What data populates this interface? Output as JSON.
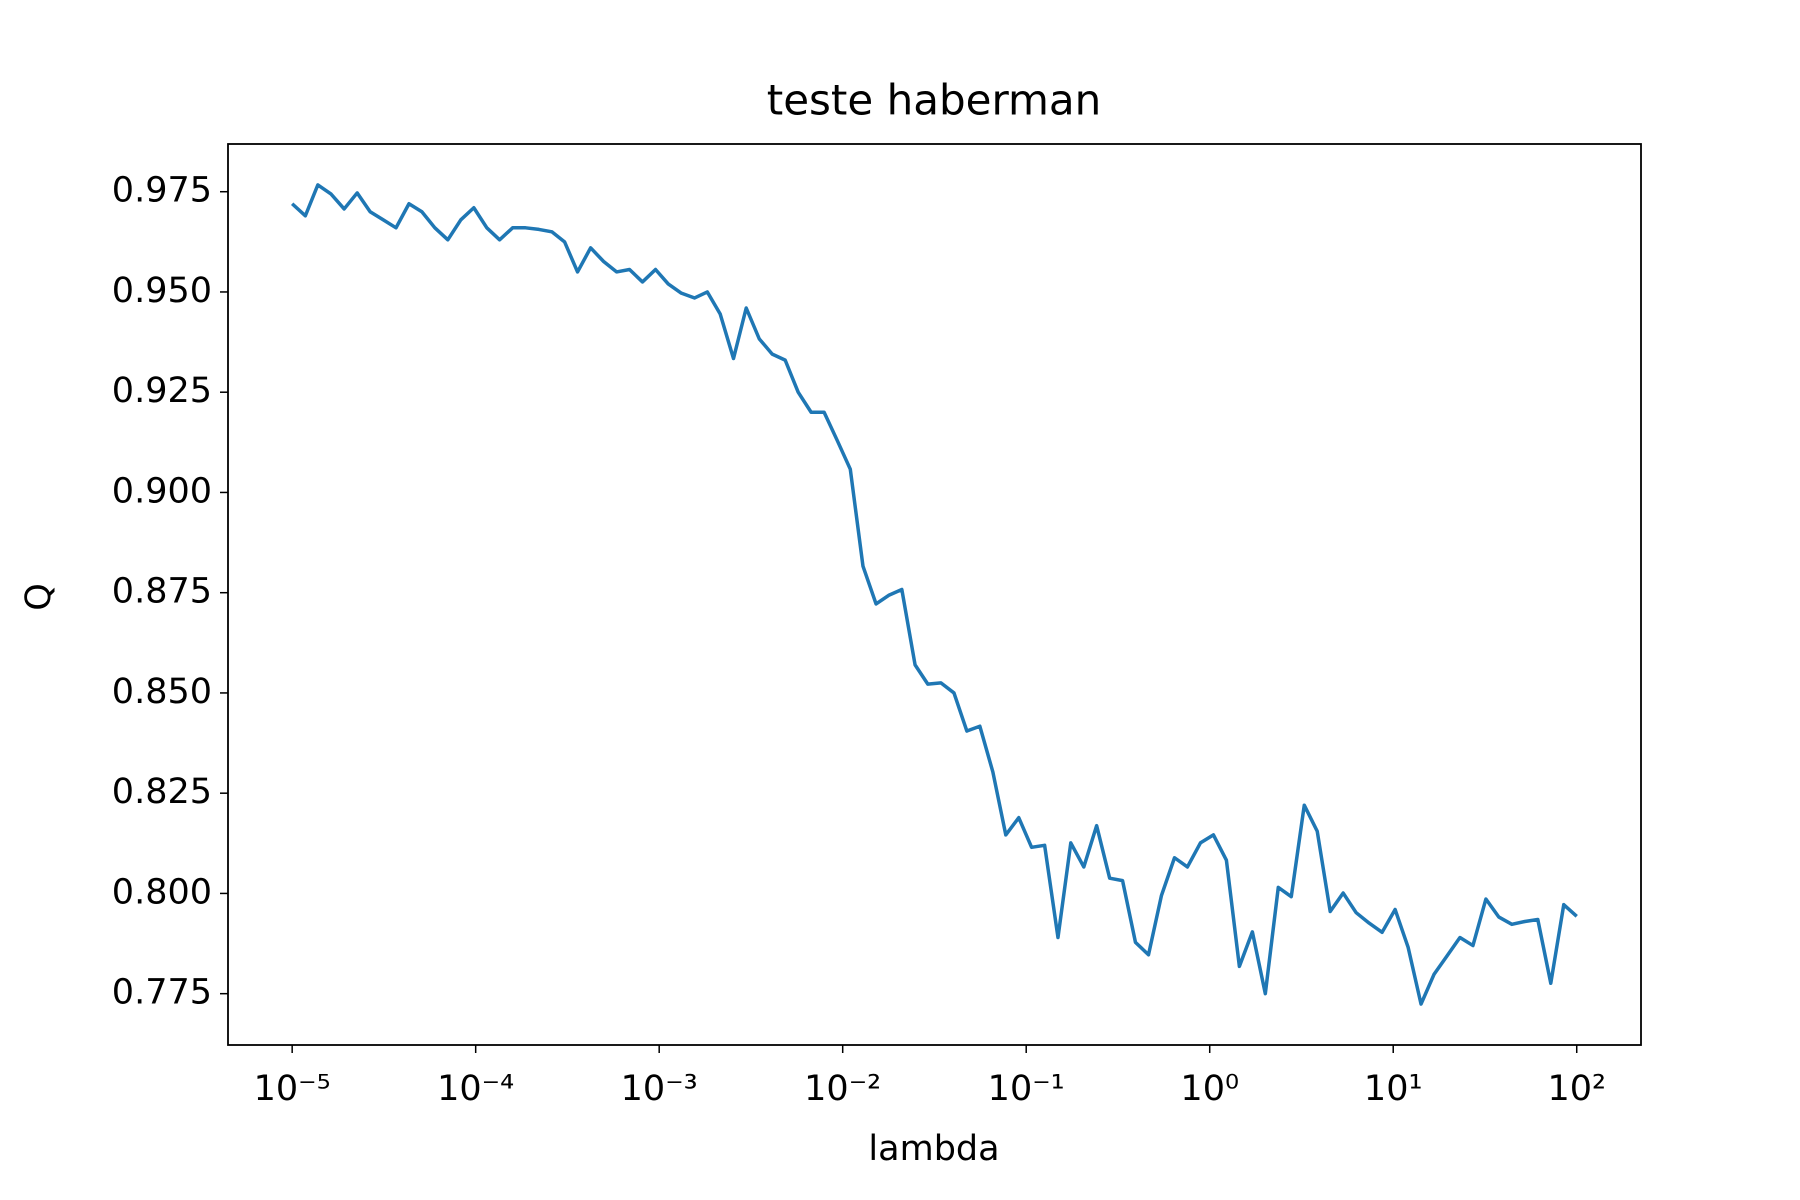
{
  "chart_data": {
    "type": "line",
    "title": "teste haberman",
    "x_label": "lambda",
    "y_label": "Q",
    "xscale": "log",
    "color": "#1f77b4",
    "x": [
      1e-05,
      1.18e-05,
      1.38e-05,
      1.63e-05,
      1.92e-05,
      2.26e-05,
      2.66e-05,
      3.13e-05,
      3.68e-05,
      4.33e-05,
      5.09e-05,
      5.99e-05,
      7.05e-05,
      8.3e-05,
      9.77e-05,
      0.000115,
      0.000135,
      0.000159,
      0.000187,
      0.000221,
      0.00026,
      0.000305,
      0.000359,
      0.000423,
      0.000498,
      0.000586,
      0.000689,
      0.000811,
      0.000955,
      0.00112,
      0.00132,
      0.00156,
      0.00183,
      0.00215,
      0.00254,
      0.00298,
      0.00351,
      0.00413,
      0.00486,
      0.00572,
      0.00673,
      0.00792,
      0.00933,
      0.011,
      0.0129,
      0.0152,
      0.0179,
      0.021,
      0.0248,
      0.0291,
      0.0343,
      0.0404,
      0.0475,
      0.0559,
      0.0658,
      0.0774,
      0.0911,
      0.107,
      0.126,
      0.149,
      0.175,
      0.206,
      0.242,
      0.285,
      0.335,
      0.394,
      0.464,
      0.546,
      0.643,
      0.756,
      0.89,
      1.048,
      1.233,
      1.451,
      1.708,
      2.009,
      2.364,
      2.783,
      3.275,
      3.854,
      4.535,
      5.337,
      6.281,
      7.391,
      8.697,
      10.24,
      12.05,
      14.18,
      16.68,
      19.63,
      23.1,
      27.19,
      31.99,
      37.65,
      44.31,
      52.14,
      61.36,
      72.21,
      84.98,
      100
    ],
    "values": [
      0.972,
      0.969,
      0.9767,
      0.9744,
      0.9707,
      0.9747,
      0.97,
      0.968,
      0.966,
      0.972,
      0.97,
      0.966,
      0.963,
      0.968,
      0.971,
      0.966,
      0.963,
      0.966,
      0.966,
      0.9656,
      0.965,
      0.9625,
      0.955,
      0.961,
      0.9576,
      0.955,
      0.9556,
      0.9525,
      0.9556,
      0.952,
      0.9497,
      0.9485,
      0.95,
      0.9445,
      0.9334,
      0.946,
      0.9383,
      0.9345,
      0.933,
      0.925,
      0.92,
      0.92,
      0.913,
      0.9058,
      0.8816,
      0.8722,
      0.8744,
      0.8758,
      0.857,
      0.8522,
      0.8525,
      0.85,
      0.8405,
      0.8417,
      0.8303,
      0.8146,
      0.8189,
      0.8115,
      0.812,
      0.789,
      0.8126,
      0.8066,
      0.8169,
      0.8038,
      0.8032,
      0.7878,
      0.7847,
      0.7995,
      0.8089,
      0.8066,
      0.8126,
      0.8146,
      0.8083,
      0.7818,
      0.7904,
      0.775,
      0.8015,
      0.7992,
      0.822,
      0.8155,
      0.7955,
      0.8001,
      0.7952,
      0.7926,
      0.7903,
      0.796,
      0.7866,
      0.7724,
      0.7798,
      0.7844,
      0.789,
      0.787,
      0.7986,
      0.7941,
      0.7923,
      0.793,
      0.7935,
      0.7776,
      0.7972,
      0.7943
    ],
    "xlim": [
      4.47e-06,
      224
    ],
    "ylim": [
      0.7622,
      0.9869
    ],
    "xticks": [
      {
        "value": 1e-05,
        "label": "10⁻⁵"
      },
      {
        "value": 0.0001,
        "label": "10⁻⁴"
      },
      {
        "value": 0.001,
        "label": "10⁻³"
      },
      {
        "value": 0.01,
        "label": "10⁻²"
      },
      {
        "value": 0.1,
        "label": "10⁻¹"
      },
      {
        "value": 1,
        "label": "10⁰"
      },
      {
        "value": 10,
        "label": "10¹"
      },
      {
        "value": 100,
        "label": "10²"
      }
    ],
    "yticks": [
      0.775,
      {
        "value": 0.8,
        "label": "0.800"
      },
      0.825,
      {
        "value": 0.85,
        "label": "0.850"
      },
      0.875,
      {
        "value": 0.9,
        "label": "0.900"
      },
      0.925,
      {
        "value": 0.95,
        "label": "0.950"
      },
      0.975
    ],
    "grid": false
  }
}
